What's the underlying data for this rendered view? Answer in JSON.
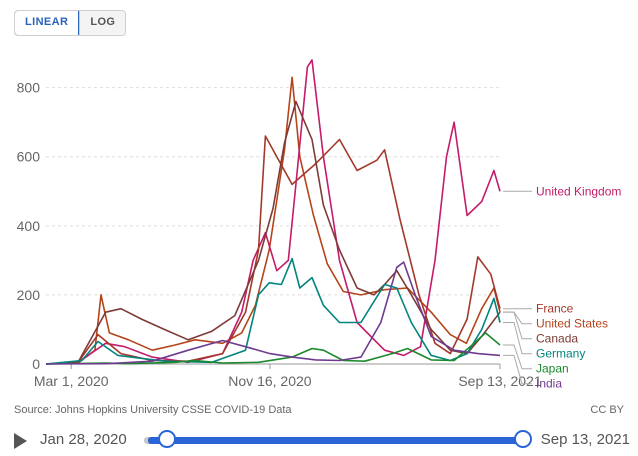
{
  "scale_toggle": {
    "options": [
      "LINEAR",
      "LOG"
    ],
    "selected": "LINEAR"
  },
  "chart_data": {
    "type": "line",
    "title": "",
    "xlabel": "",
    "ylabel": "",
    "ylim": [
      0,
      880
    ],
    "xlim": [
      "2020-01-28",
      "2021-09-13"
    ],
    "grid": "horizontal",
    "y_ticks": [
      0,
      200,
      400,
      600,
      800
    ],
    "x_ticks": [
      "Mar 1, 2020",
      "Nov 16, 2020",
      "Sep 13, 2021"
    ],
    "legend_position": "right-end-labels",
    "series": [
      {
        "name": "United States",
        "color": "#b5441a",
        "x": [
          "2020-01-28",
          "2020-03-10",
          "2020-04-01",
          "2020-04-09",
          "2020-04-20",
          "2020-05-15",
          "2020-06-15",
          "2020-07-15",
          "2020-08-10",
          "2020-09-15",
          "2020-10-10",
          "2020-10-28",
          "2020-11-15",
          "2020-12-05",
          "2020-12-15",
          "2020-12-25",
          "2021-01-12",
          "2021-01-30",
          "2021-02-20",
          "2021-03-15",
          "2021-04-15",
          "2021-05-15",
          "2021-06-15",
          "2021-07-10",
          "2021-07-31",
          "2021-08-20",
          "2021-09-05",
          "2021-09-13"
        ],
        "y": [
          0,
          3,
          40,
          200,
          90,
          70,
          40,
          55,
          70,
          60,
          90,
          170,
          330,
          620,
          830,
          600,
          430,
          290,
          210,
          200,
          215,
          220,
          150,
          85,
          60,
          160,
          220,
          150
        ]
      },
      {
        "name": "United Kingdom",
        "color": "#c41b6a",
        "x": [
          "2020-01-28",
          "2020-03-10",
          "2020-04-15",
          "2020-05-10",
          "2020-06-15",
          "2020-08-01",
          "2020-09-15",
          "2020-10-10",
          "2020-10-25",
          "2020-11-10",
          "2020-11-25",
          "2020-12-10",
          "2020-12-20",
          "2020-12-28",
          "2021-01-04",
          "2021-01-10",
          "2021-01-25",
          "2021-02-15",
          "2021-03-10",
          "2021-04-15",
          "2021-05-10",
          "2021-06-01",
          "2021-06-20",
          "2021-07-05",
          "2021-07-15",
          "2021-08-01",
          "2021-08-20",
          "2021-09-05",
          "2021-09-13"
        ],
        "y": [
          0,
          5,
          60,
          50,
          20,
          5,
          30,
          150,
          300,
          380,
          270,
          300,
          520,
          700,
          860,
          880,
          600,
          300,
          120,
          40,
          25,
          50,
          300,
          600,
          700,
          430,
          470,
          560,
          500
        ]
      },
      {
        "name": "France",
        "color": "#a3382b",
        "x": [
          "2020-01-28",
          "2020-03-10",
          "2020-04-05",
          "2020-05-05",
          "2020-06-15",
          "2020-08-01",
          "2020-09-15",
          "2020-10-15",
          "2020-11-01",
          "2020-11-10",
          "2020-11-25",
          "2020-12-15",
          "2021-01-15",
          "2021-02-15",
          "2021-03-10",
          "2021-04-05",
          "2021-04-15",
          "2021-05-05",
          "2021-05-30",
          "2021-06-20",
          "2021-07-10",
          "2021-08-01",
          "2021-08-15",
          "2021-09-01",
          "2021-09-13"
        ],
        "y": [
          0,
          5,
          85,
          30,
          10,
          8,
          30,
          150,
          330,
          660,
          600,
          520,
          580,
          650,
          560,
          590,
          620,
          420,
          200,
          60,
          30,
          130,
          310,
          260,
          160
        ]
      },
      {
        "name": "Canada",
        "color": "#7e3b36",
        "x": [
          "2020-01-28",
          "2020-03-10",
          "2020-04-15",
          "2020-05-05",
          "2020-06-01",
          "2020-07-01",
          "2020-08-01",
          "2020-09-01",
          "2020-10-01",
          "2020-11-01",
          "2020-11-20",
          "2020-12-05",
          "2020-12-20",
          "2021-01-10",
          "2021-01-25",
          "2021-02-15",
          "2021-03-10",
          "2021-04-01",
          "2021-04-15",
          "2021-05-01",
          "2021-05-20",
          "2021-06-15",
          "2021-07-10",
          "2021-08-01",
          "2021-08-20",
          "2021-09-13"
        ],
        "y": [
          0,
          5,
          150,
          160,
          130,
          100,
          70,
          95,
          140,
          300,
          450,
          640,
          760,
          650,
          460,
          330,
          220,
          200,
          230,
          270,
          200,
          100,
          40,
          30,
          80,
          150
        ]
      },
      {
        "name": "Germany",
        "color": "#00847e",
        "x": [
          "2020-01-28",
          "2020-03-15",
          "2020-04-05",
          "2020-05-01",
          "2020-07-01",
          "2020-09-01",
          "2020-10-15",
          "2020-11-01",
          "2020-11-15",
          "2020-12-01",
          "2020-12-15",
          "2020-12-25",
          "2021-01-10",
          "2021-01-25",
          "2021-02-15",
          "2021-03-15",
          "2021-04-15",
          "2021-05-01",
          "2021-05-20",
          "2021-06-15",
          "2021-07-10",
          "2021-08-01",
          "2021-08-20",
          "2021-09-05",
          "2021-09-13"
        ],
        "y": [
          0,
          10,
          65,
          25,
          8,
          5,
          40,
          200,
          235,
          230,
          305,
          220,
          250,
          170,
          120,
          120,
          230,
          220,
          120,
          25,
          10,
          30,
          100,
          190,
          120
        ]
      },
      {
        "name": "Japan",
        "color": "#1b8a2c",
        "x": [
          "2020-01-28",
          "2020-04-15",
          "2020-05-15",
          "2020-07-15",
          "2020-08-10",
          "2020-09-15",
          "2020-11-01",
          "2020-12-15",
          "2021-01-10",
          "2021-01-25",
          "2021-02-20",
          "2021-03-20",
          "2021-04-25",
          "2021-05-15",
          "2021-06-15",
          "2021-07-15",
          "2021-08-10",
          "2021-08-25",
          "2021-09-13"
        ],
        "y": [
          0,
          3,
          1,
          5,
          10,
          3,
          5,
          20,
          45,
          40,
          10,
          8,
          30,
          45,
          12,
          10,
          60,
          90,
          55
        ]
      },
      {
        "name": "India",
        "color": "#6f3b91",
        "x": [
          "2020-01-28",
          "2020-04-15",
          "2020-06-15",
          "2020-08-01",
          "2020-09-15",
          "2020-10-15",
          "2020-11-16",
          "2020-12-15",
          "2021-01-15",
          "2021-02-15",
          "2021-03-15",
          "2021-04-10",
          "2021-05-01",
          "2021-05-10",
          "2021-05-25",
          "2021-06-15",
          "2021-07-15",
          "2021-08-15",
          "2021-09-13"
        ],
        "y": [
          0,
          1,
          8,
          40,
          68,
          50,
          30,
          20,
          12,
          10,
          20,
          120,
          280,
          295,
          200,
          80,
          40,
          30,
          25
        ]
      }
    ]
  },
  "footer": {
    "source": "Source: Johns Hopkins University CSSE COVID-19 Data",
    "license": "CC BY"
  },
  "timeline": {
    "start_label": "Jan 28, 2020",
    "end_label": "Sep 13, 2021"
  }
}
